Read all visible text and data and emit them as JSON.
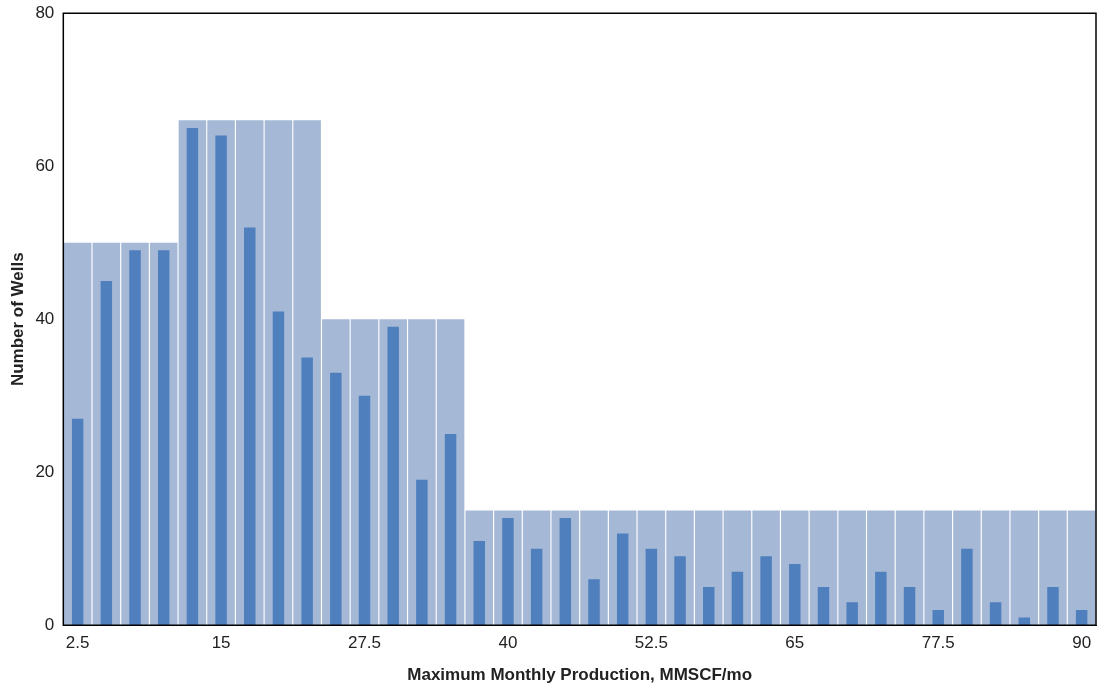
{
  "chart_data": {
    "type": "bar",
    "xlabel": "Maximum Monthly Production, MMSCF/mo",
    "ylabel": "Number of Wells",
    "categories": [
      "2.5",
      null,
      null,
      null,
      null,
      "15",
      null,
      null,
      null,
      null,
      "27.5",
      null,
      null,
      null,
      null,
      "40",
      null,
      null,
      null,
      null,
      "52.5",
      null,
      null,
      null,
      null,
      "65",
      null,
      null,
      null,
      null,
      "77.5",
      null,
      null,
      null,
      null,
      "90"
    ],
    "series": [
      {
        "color": "#4f7fbd",
        "values": [
          27,
          45,
          49,
          49,
          65,
          64,
          52,
          41,
          35,
          33,
          30,
          39,
          19,
          25,
          11,
          14,
          10,
          14,
          6,
          12,
          10,
          9,
          5,
          7,
          9,
          8,
          5,
          3,
          7,
          5,
          2,
          10,
          3,
          1,
          5,
          2
        ]
      },
      {
        "color": "#a5b9d6",
        "values": [
          50,
          50,
          50,
          50,
          66,
          66,
          66,
          66,
          66,
          40,
          40,
          40,
          40,
          40,
          15,
          15,
          15,
          15,
          15,
          15,
          15,
          15,
          15,
          15,
          15,
          15,
          15,
          15,
          15,
          15,
          15,
          15,
          15,
          15,
          15,
          15
        ]
      }
    ],
    "ylim": [
      0,
      80
    ],
    "yticks": [
      0,
      20,
      40,
      60,
      80
    ],
    "grid": false,
    "legend": false
  }
}
